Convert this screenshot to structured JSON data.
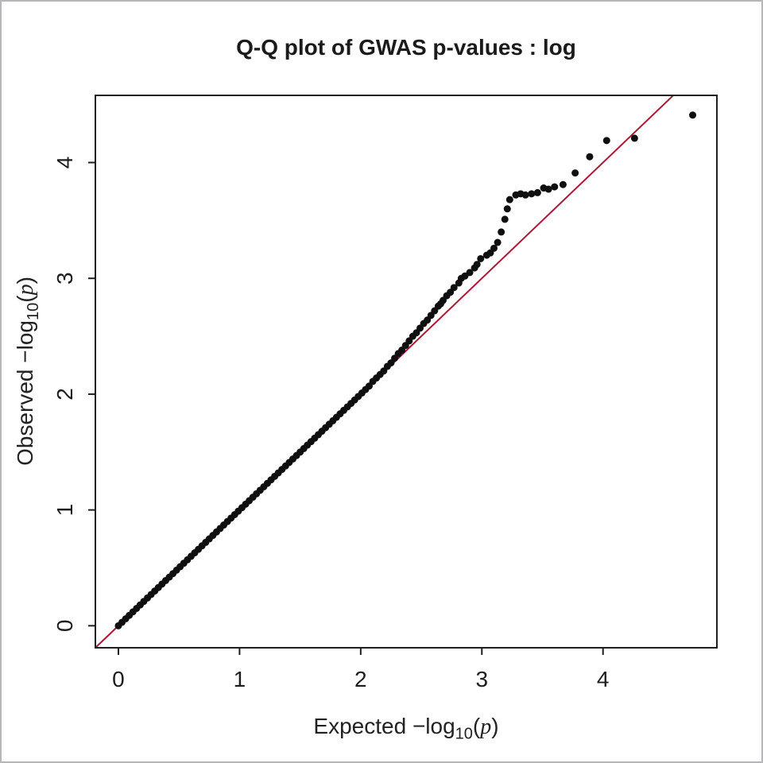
{
  "chart_data": {
    "type": "scatter",
    "title": "Q-Q plot of GWAS p-values : log",
    "xlabel": {
      "prefix": "Expected ",
      "minus_log": "−log",
      "sub": "10",
      "open": "(",
      "var": "p",
      "close": ")"
    },
    "ylabel": {
      "prefix": "Observed ",
      "minus_log": "−log",
      "sub": "10",
      "open": "(",
      "var": "p",
      "close": ")"
    },
    "xlim": [
      -0.19,
      4.94
    ],
    "ylim": [
      -0.19,
      4.58
    ],
    "grid": false,
    "ticks": {
      "x": {
        "values": [
          0,
          1,
          2,
          3,
          4
        ],
        "labels": [
          "0",
          "1",
          "2",
          "3",
          "4"
        ]
      },
      "y": {
        "values": [
          0,
          1,
          2,
          3,
          4
        ],
        "labels": [
          "0",
          "1",
          "2",
          "3",
          "4"
        ]
      }
    },
    "reference_line": {
      "type": "y=x",
      "color": "#b01735",
      "width": 2
    },
    "point_style": {
      "color": "#0f0f0f",
      "radius": 4.5
    },
    "points": [
      [
        0.0,
        0.0
      ],
      [
        0.03,
        0.03
      ],
      [
        0.06,
        0.06
      ],
      [
        0.09,
        0.09
      ],
      [
        0.12,
        0.12
      ],
      [
        0.15,
        0.15
      ],
      [
        0.18,
        0.18
      ],
      [
        0.21,
        0.21
      ],
      [
        0.24,
        0.24
      ],
      [
        0.27,
        0.27
      ],
      [
        0.3,
        0.3
      ],
      [
        0.33,
        0.33
      ],
      [
        0.36,
        0.36
      ],
      [
        0.39,
        0.39
      ],
      [
        0.42,
        0.42
      ],
      [
        0.45,
        0.45
      ],
      [
        0.48,
        0.48
      ],
      [
        0.51,
        0.51
      ],
      [
        0.54,
        0.54
      ],
      [
        0.57,
        0.57
      ],
      [
        0.6,
        0.6
      ],
      [
        0.63,
        0.63
      ],
      [
        0.66,
        0.66
      ],
      [
        0.69,
        0.69
      ],
      [
        0.72,
        0.72
      ],
      [
        0.75,
        0.75
      ],
      [
        0.78,
        0.78
      ],
      [
        0.81,
        0.81
      ],
      [
        0.84,
        0.84
      ],
      [
        0.87,
        0.87
      ],
      [
        0.9,
        0.9
      ],
      [
        0.93,
        0.93
      ],
      [
        0.96,
        0.96
      ],
      [
        0.99,
        0.99
      ],
      [
        1.02,
        1.02
      ],
      [
        1.05,
        1.05
      ],
      [
        1.08,
        1.08
      ],
      [
        1.11,
        1.11
      ],
      [
        1.14,
        1.14
      ],
      [
        1.17,
        1.17
      ],
      [
        1.2,
        1.2
      ],
      [
        1.23,
        1.23
      ],
      [
        1.26,
        1.26
      ],
      [
        1.29,
        1.29
      ],
      [
        1.32,
        1.32
      ],
      [
        1.35,
        1.35
      ],
      [
        1.38,
        1.38
      ],
      [
        1.41,
        1.41
      ],
      [
        1.44,
        1.44
      ],
      [
        1.47,
        1.47
      ],
      [
        1.5,
        1.5
      ],
      [
        1.53,
        1.53
      ],
      [
        1.56,
        1.56
      ],
      [
        1.59,
        1.59
      ],
      [
        1.62,
        1.62
      ],
      [
        1.65,
        1.65
      ],
      [
        1.68,
        1.68
      ],
      [
        1.71,
        1.71
      ],
      [
        1.74,
        1.74
      ],
      [
        1.77,
        1.77
      ],
      [
        1.8,
        1.8
      ],
      [
        1.83,
        1.83
      ],
      [
        1.86,
        1.86
      ],
      [
        1.89,
        1.89
      ],
      [
        1.92,
        1.92
      ],
      [
        1.95,
        1.95
      ],
      [
        1.98,
        1.98
      ],
      [
        2.01,
        2.01
      ],
      [
        2.04,
        2.04
      ],
      [
        2.07,
        2.07
      ],
      [
        2.1,
        2.11
      ],
      [
        2.13,
        2.14
      ],
      [
        2.16,
        2.17
      ],
      [
        2.19,
        2.2
      ],
      [
        2.22,
        2.24
      ],
      [
        2.25,
        2.27
      ],
      [
        2.28,
        2.31
      ],
      [
        2.31,
        2.35
      ],
      [
        2.34,
        2.38
      ],
      [
        2.37,
        2.42
      ],
      [
        2.4,
        2.46
      ],
      [
        2.43,
        2.5
      ],
      [
        2.46,
        2.53
      ],
      [
        2.49,
        2.57
      ],
      [
        2.52,
        2.61
      ],
      [
        2.55,
        2.64
      ],
      [
        2.58,
        2.68
      ],
      [
        2.61,
        2.72
      ],
      [
        2.64,
        2.76
      ],
      [
        2.66,
        2.78
      ],
      [
        2.68,
        2.81
      ],
      [
        2.71,
        2.85
      ],
      [
        2.74,
        2.88
      ],
      [
        2.77,
        2.92
      ],
      [
        2.81,
        2.96
      ],
      [
        2.83,
        3.0
      ],
      [
        2.86,
        3.02
      ],
      [
        2.9,
        3.05
      ],
      [
        2.94,
        3.09
      ],
      [
        2.96,
        3.12
      ],
      [
        2.99,
        3.17
      ],
      [
        3.04,
        3.2
      ],
      [
        3.07,
        3.22
      ],
      [
        3.1,
        3.26
      ],
      [
        3.13,
        3.31
      ],
      [
        3.16,
        3.4
      ],
      [
        3.19,
        3.51
      ],
      [
        3.21,
        3.6
      ],
      [
        3.23,
        3.68
      ],
      [
        3.28,
        3.72
      ],
      [
        3.32,
        3.73
      ],
      [
        3.36,
        3.72
      ],
      [
        3.41,
        3.73
      ],
      [
        3.46,
        3.74
      ],
      [
        3.51,
        3.78
      ],
      [
        3.55,
        3.77
      ],
      [
        3.6,
        3.79
      ],
      [
        3.67,
        3.81
      ],
      [
        3.77,
        3.91
      ],
      [
        3.89,
        4.05
      ],
      [
        4.03,
        4.19
      ],
      [
        4.26,
        4.21
      ],
      [
        4.74,
        4.41
      ]
    ],
    "colors": {
      "axis": "#1f1f1f",
      "tick_label": "#1d1d1d",
      "background": "#ffffff",
      "outer_border": "#b4b8bc"
    }
  }
}
